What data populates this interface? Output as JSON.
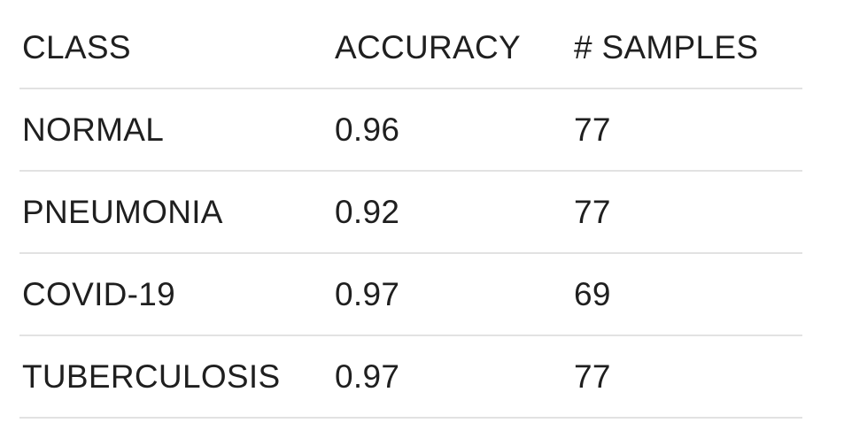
{
  "chart_data": {
    "type": "table",
    "columns": [
      "CLASS",
      "ACCURACY",
      "# SAMPLES"
    ],
    "rows": [
      [
        "NORMAL",
        "0.96",
        "77"
      ],
      [
        "PNEUMONIA",
        "0.92",
        "77"
      ],
      [
        "COVID-19",
        "0.97",
        "69"
      ],
      [
        "TUBERCULOSIS",
        "0.97",
        "77"
      ]
    ]
  }
}
